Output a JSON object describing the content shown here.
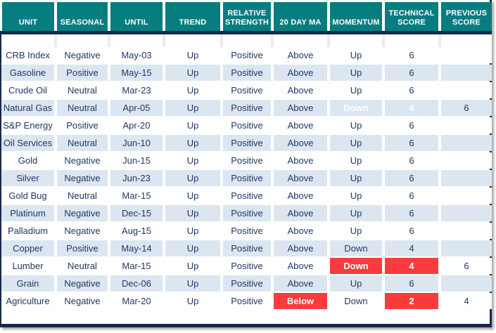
{
  "colors": {
    "header_teal": "#077D80",
    "header_text": "#FFFFFF",
    "row_alt_blue": "#DCE6F1",
    "row_white": "#FFFFFF",
    "data_text_navy": "#1F3864",
    "alert_red": "#F93B3D",
    "alert_text": "#FFFFFF",
    "border_navy": "#17294B"
  },
  "header": {
    "columns": [
      {
        "key": "unit",
        "label": "UNIT"
      },
      {
        "key": "seasonal",
        "label": "SEASONAL"
      },
      {
        "key": "until",
        "label": "UNTIL"
      },
      {
        "key": "trend",
        "label": "TREND"
      },
      {
        "key": "relative_strength",
        "label": "RELATIVE STRENGTH"
      },
      {
        "key": "ma20",
        "label": "20 DAY MA"
      },
      {
        "key": "momentum",
        "label": "MOMENTUM"
      },
      {
        "key": "technical_score",
        "label": "TECHNICAL SCORE"
      },
      {
        "key": "previous_score",
        "label": "PREVIOUS SCORE"
      }
    ]
  },
  "rows": [
    {
      "unit": "CRB Index",
      "seasonal": "Negative",
      "until": "May-03",
      "trend": "Up",
      "relative_strength": "Positive",
      "ma20": "Above",
      "momentum": "Up",
      "technical_score": "6",
      "previous_score": "",
      "highlight": []
    },
    {
      "unit": "Gasoline",
      "seasonal": "Positive",
      "until": "May-15",
      "trend": "Up",
      "relative_strength": "Positive",
      "ma20": "Above",
      "momentum": "Up",
      "technical_score": "6",
      "previous_score": "",
      "highlight": []
    },
    {
      "unit": "Crude Oil",
      "seasonal": "Neutral",
      "until": "Mar-23",
      "trend": "Up",
      "relative_strength": "Positive",
      "ma20": "Above",
      "momentum": "Up",
      "technical_score": "6",
      "previous_score": "",
      "highlight": []
    },
    {
      "unit": "Natural Gas",
      "seasonal": "Neutral",
      "until": "Apr-05",
      "trend": "Up",
      "relative_strength": "Positive",
      "ma20": "Above",
      "momentum": "Down",
      "technical_score": "4",
      "previous_score": "6",
      "highlight": [
        "momentum",
        "technical_score"
      ]
    },
    {
      "unit": "S&P Energy",
      "seasonal": "Positive",
      "until": "Apr-20",
      "trend": "Up",
      "relative_strength": "Positive",
      "ma20": "Above",
      "momentum": "Up",
      "technical_score": "6",
      "previous_score": "",
      "highlight": []
    },
    {
      "unit": "Oil Services",
      "seasonal": "Neutral",
      "until": "Jun-10",
      "trend": "Up",
      "relative_strength": "Positive",
      "ma20": "Above",
      "momentum": "Up",
      "technical_score": "6",
      "previous_score": "",
      "highlight": []
    },
    {
      "unit": "Gold",
      "seasonal": "Negative",
      "until": "Jun-15",
      "trend": "Up",
      "relative_strength": "Positive",
      "ma20": "Above",
      "momentum": "Up",
      "technical_score": "6",
      "previous_score": "",
      "highlight": []
    },
    {
      "unit": "Silver",
      "seasonal": "Negative",
      "until": "Jun-23",
      "trend": "Up",
      "relative_strength": "Positive",
      "ma20": "Above",
      "momentum": "Up",
      "technical_score": "6",
      "previous_score": "",
      "highlight": []
    },
    {
      "unit": "Gold Bug",
      "seasonal": "Neutral",
      "until": "Mar-15",
      "trend": "Up",
      "relative_strength": "Positive",
      "ma20": "Above",
      "momentum": "Up",
      "technical_score": "6",
      "previous_score": "",
      "highlight": []
    },
    {
      "unit": "Platinum",
      "seasonal": "Negative",
      "until": "Dec-15",
      "trend": "Up",
      "relative_strength": "Positive",
      "ma20": "Above",
      "momentum": "Up",
      "technical_score": "6",
      "previous_score": "",
      "highlight": []
    },
    {
      "unit": "Palladium",
      "seasonal": "Negative",
      "until": "Aug-15",
      "trend": "Up",
      "relative_strength": "Positive",
      "ma20": "Above",
      "momentum": "Up",
      "technical_score": "6",
      "previous_score": "",
      "highlight": []
    },
    {
      "unit": "Copper",
      "seasonal": "Positive",
      "until": "May-14",
      "trend": "Up",
      "relative_strength": "Positive",
      "ma20": "Above",
      "momentum": "Down",
      "technical_score": "4",
      "previous_score": "",
      "highlight": []
    },
    {
      "unit": "Lumber",
      "seasonal": "Neutral",
      "until": "Mar-15",
      "trend": "Up",
      "relative_strength": "Positive",
      "ma20": "Above",
      "momentum": "Down",
      "technical_score": "4",
      "previous_score": "6",
      "highlight": [
        "momentum",
        "technical_score"
      ]
    },
    {
      "unit": "Grain",
      "seasonal": "Negative",
      "until": "Dec-06",
      "trend": "Up",
      "relative_strength": "Positive",
      "ma20": "Above",
      "momentum": "Up",
      "technical_score": "6",
      "previous_score": "",
      "highlight": []
    },
    {
      "unit": "Agriculture",
      "seasonal": "Negative",
      "until": "Mar-20",
      "trend": "Up",
      "relative_strength": "Positive",
      "ma20": "Below",
      "momentum": "Down",
      "technical_score": "2",
      "previous_score": "4",
      "highlight": [
        "ma20",
        "technical_score"
      ]
    }
  ]
}
